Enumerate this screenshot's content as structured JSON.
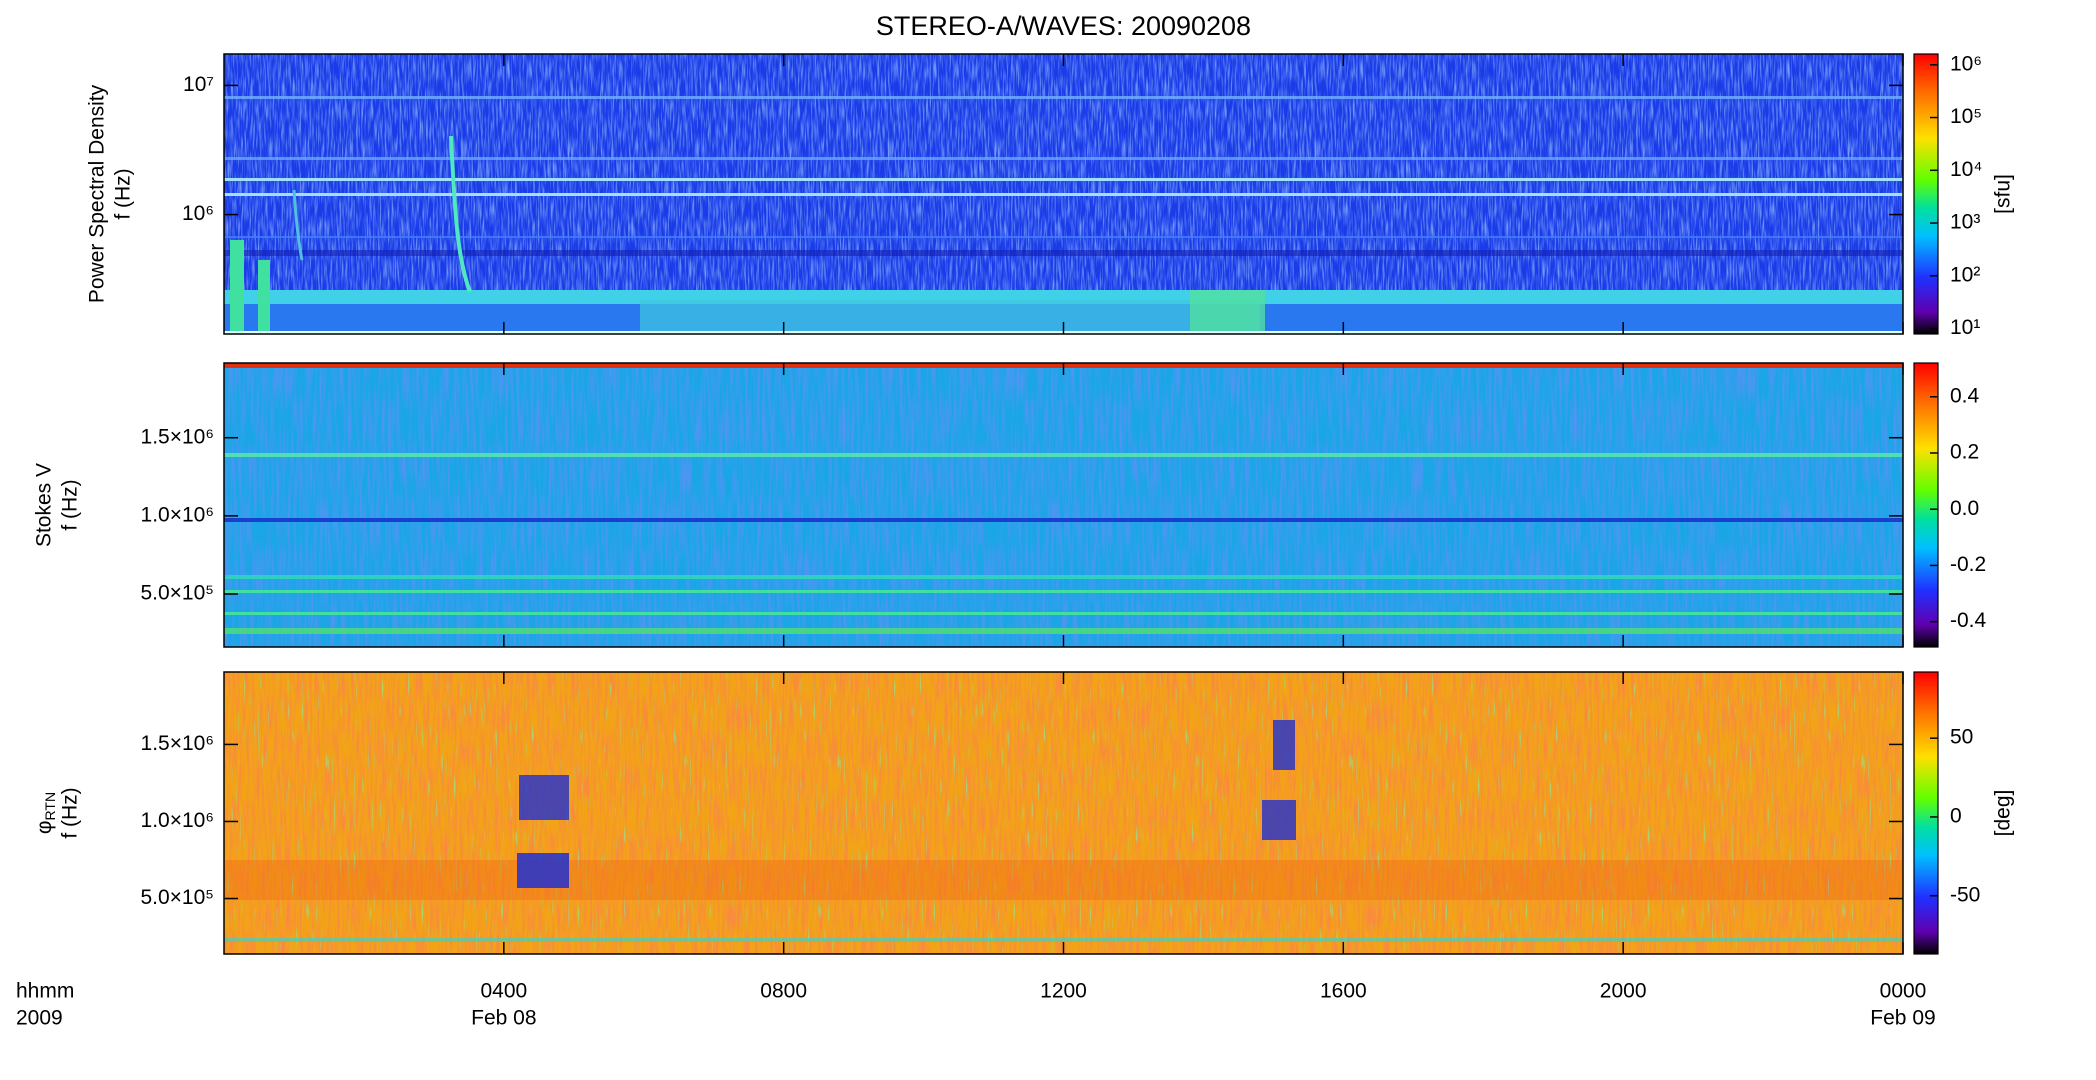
{
  "chart_data": [
    {
      "type": "spectrogram",
      "title": "STEREO-A/WAVES: 20090208",
      "ylabel": [
        "Power Spectral Density",
        "f (Hz)"
      ],
      "yscale": "log",
      "ylim": [
        119000,
        17500000
      ],
      "yticks": [
        {
          "value": 1000000,
          "label": "10⁶"
        },
        {
          "value": 10000000,
          "label": "10⁷"
        }
      ],
      "colorbar": {
        "scale": "log",
        "clim": [
          7.9,
          1600000
        ],
        "label": "[sfu]",
        "ticks": [
          {
            "value": 10,
            "label": "10¹"
          },
          {
            "value": 100,
            "label": "10²"
          },
          {
            "value": 1000,
            "label": "10³"
          },
          {
            "value": 10000,
            "label": "10⁴"
          },
          {
            "value": 100000,
            "label": "10⁵"
          },
          {
            "value": 1000000,
            "label": "10⁶"
          }
        ]
      }
    },
    {
      "type": "spectrogram",
      "ylabel": [
        "Stokes V",
        "f (Hz)"
      ],
      "yscale": "linear",
      "ylim": [
        161000,
        1978000
      ],
      "yticks": [
        {
          "value": 500000,
          "label": "5.0×10⁵"
        },
        {
          "value": 1000000,
          "label": "1.0×10⁶"
        },
        {
          "value": 1500000,
          "label": "1.5×10⁶"
        }
      ],
      "colorbar": {
        "scale": "linear",
        "clim": [
          -0.49,
          0.52
        ],
        "ticks": [
          -0.4,
          -0.2,
          {
            "value": 0,
            "label": "0.0"
          },
          0.2,
          0.4
        ]
      }
    },
    {
      "type": "spectrogram",
      "ylabel_symbol": "φ",
      "ylabel_subscript": "RTN",
      "ylabel_unit": "f (Hz)",
      "yscale": "linear",
      "ylim": [
        140000,
        1970000
      ],
      "yticks": [
        {
          "value": 500000,
          "label": "5.0×10⁵"
        },
        {
          "value": 1000000,
          "label": "1.0×10⁶"
        },
        {
          "value": 1500000,
          "label": "1.5×10⁶"
        }
      ],
      "colorbar": {
        "scale": "linear",
        "clim": [
          -87,
          92
        ],
        "label": "[deg]",
        "ticks": [
          -50,
          0,
          50
        ]
      },
      "xlim": [
        0,
        24
      ],
      "xticks": [
        {
          "value": 4,
          "label": "0400"
        },
        {
          "value": 8,
          "label": "0800"
        },
        {
          "value": 12,
          "label": "1200"
        },
        {
          "value": 16,
          "label": "1600"
        },
        {
          "value": 20,
          "label": "2000"
        },
        {
          "value": 24,
          "label": "0000"
        }
      ],
      "date_labels": [
        {
          "value": 4,
          "label": "Feb 08"
        },
        {
          "value": 24,
          "label": "Feb 09"
        }
      ],
      "x_caption": [
        "hhmm",
        "2009"
      ]
    }
  ]
}
